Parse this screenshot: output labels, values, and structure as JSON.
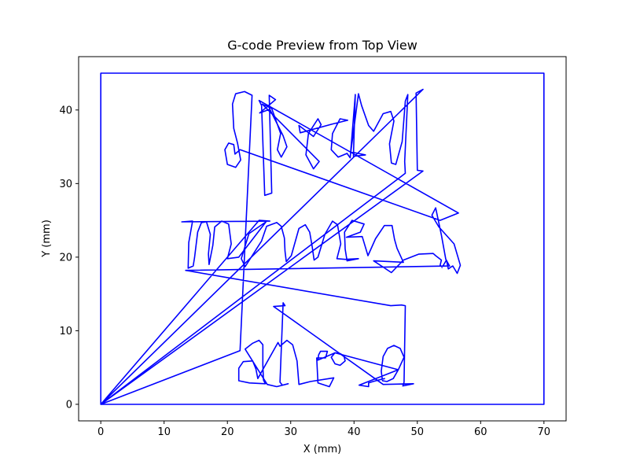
{
  "chart_data": {
    "type": "line",
    "title": "G-code Preview from Top View",
    "xlabel": "X (mm)",
    "ylabel": "Y (mm)",
    "xlim": [
      -3.5,
      73.5
    ],
    "ylim": [
      -2.25,
      47.25
    ],
    "xticks": [
      0,
      10,
      20,
      30,
      40,
      50,
      60,
      70
    ],
    "yticks": [
      0,
      10,
      20,
      30,
      40
    ],
    "grid": false,
    "series_color": "#0000ff",
    "series": [
      {
        "values": [
          [
            0,
            0
          ],
          [
            0,
            45
          ],
          [
            70,
            45
          ],
          [
            70,
            0
          ],
          [
            0,
            0
          ],
          [
            50.9,
            42.8
          ],
          [
            49.8,
            42.3
          ],
          [
            50.0,
            31.8
          ],
          [
            50.9,
            31.7
          ],
          [
            0,
            0
          ],
          [
            22.0,
            7.3
          ],
          [
            23.9,
            42.0
          ],
          [
            22.7,
            42.5
          ],
          [
            21.3,
            42.2
          ],
          [
            20.8,
            40.8
          ],
          [
            21.0,
            37.5
          ],
          [
            21.6,
            35.5
          ],
          [
            22.1,
            33.2
          ],
          [
            21.3,
            32.2
          ],
          [
            20.0,
            32.6
          ],
          [
            19.6,
            34.6
          ],
          [
            20.2,
            35.5
          ],
          [
            21.0,
            35.3
          ],
          [
            21.2,
            34.0
          ],
          [
            22.0,
            34.6
          ],
          [
            53.6,
            25.0
          ],
          [
            56.5,
            26.0
          ],
          [
            25.0,
            41.3
          ],
          [
            25.4,
            40.6
          ],
          [
            25.9,
            28.4
          ],
          [
            27.0,
            28.7
          ],
          [
            26.6,
            42.0
          ],
          [
            27.6,
            41.4
          ],
          [
            25.1,
            39.6
          ],
          [
            26.7,
            40.1
          ],
          [
            28.8,
            36.5
          ],
          [
            29.4,
            35.0
          ],
          [
            28.5,
            33.6
          ],
          [
            27.9,
            34.6
          ],
          [
            28.4,
            36.8
          ],
          [
            27.0,
            40.2
          ],
          [
            25.5,
            40.8
          ],
          [
            34.5,
            33.0
          ],
          [
            33.6,
            32.0
          ],
          [
            32.4,
            33.9
          ],
          [
            32.8,
            36.8
          ],
          [
            34.3,
            38.8
          ],
          [
            34.8,
            38.0
          ],
          [
            33.6,
            36.4
          ],
          [
            31.3,
            37.9
          ],
          [
            31.5,
            36.9
          ],
          [
            36.6,
            38.1
          ],
          [
            39.0,
            38.6
          ],
          [
            37.8,
            38.8
          ],
          [
            36.6,
            36.8
          ],
          [
            36.4,
            34.6
          ],
          [
            37.5,
            33.6
          ],
          [
            38.9,
            34.1
          ],
          [
            39.4,
            33.5
          ],
          [
            40.2,
            42.1
          ],
          [
            39.9,
            33.7
          ],
          [
            41.8,
            33.9
          ],
          [
            39.5,
            34.3
          ],
          [
            40.7,
            42.2
          ],
          [
            41.2,
            40.6
          ],
          [
            42.3,
            37.9
          ],
          [
            43.1,
            37.1
          ],
          [
            44.6,
            39.5
          ],
          [
            45.8,
            39.8
          ],
          [
            46.3,
            38.5
          ],
          [
            45.6,
            35.4
          ],
          [
            45.9,
            32.8
          ],
          [
            46.6,
            32.6
          ],
          [
            47.6,
            35.7
          ],
          [
            48.1,
            41.2
          ],
          [
            48.5,
            42.1
          ],
          [
            48.0,
            33.0
          ],
          [
            48.1,
            31.4
          ],
          [
            0,
            0
          ],
          [
            25.0,
            25.0
          ],
          [
            26.7,
            24.9
          ],
          [
            12.8,
            24.8
          ],
          [
            14.5,
            24.9
          ],
          [
            13.9,
            22.0
          ],
          [
            13.8,
            18.5
          ],
          [
            14.6,
            18.8
          ],
          [
            14.8,
            19.9
          ],
          [
            15.3,
            23.4
          ],
          [
            15.9,
            24.7
          ],
          [
            16.7,
            24.8
          ],
          [
            17.3,
            23.1
          ],
          [
            17.0,
            20.4
          ],
          [
            17.1,
            19.0
          ],
          [
            17.7,
            21.6
          ],
          [
            18.0,
            24.1
          ],
          [
            19.1,
            24.9
          ],
          [
            20.2,
            24.5
          ],
          [
            20.6,
            21.8
          ],
          [
            20.0,
            19.8
          ],
          [
            21.8,
            20.0
          ],
          [
            26.1,
            24.8
          ],
          [
            23.4,
            23.2
          ],
          [
            22.2,
            19.8
          ],
          [
            22.8,
            18.7
          ],
          [
            25.4,
            22.2
          ],
          [
            26.2,
            24.2
          ],
          [
            27.8,
            24.7
          ],
          [
            28.5,
            24.2
          ],
          [
            29.0,
            22.6
          ],
          [
            29.1,
            20.8
          ],
          [
            29.3,
            19.4
          ],
          [
            30.1,
            20.2
          ],
          [
            31.3,
            23.9
          ],
          [
            32.3,
            24.4
          ],
          [
            33.0,
            23.4
          ],
          [
            33.4,
            21.4
          ],
          [
            33.7,
            19.6
          ],
          [
            34.3,
            20.0
          ],
          [
            35.4,
            23.1
          ],
          [
            36.6,
            24.9
          ],
          [
            37.4,
            24.4
          ],
          [
            37.9,
            21.8
          ],
          [
            37.3,
            19.8
          ],
          [
            38.6,
            19.7
          ],
          [
            40.7,
            19.8
          ],
          [
            38.9,
            19.5
          ],
          [
            38.6,
            21.1
          ],
          [
            38.5,
            23.4
          ],
          [
            39.7,
            25.0
          ],
          [
            41.6,
            24.5
          ],
          [
            41.0,
            23.4
          ],
          [
            38.8,
            22.7
          ],
          [
            41.3,
            22.8
          ],
          [
            42.2,
            20.2
          ],
          [
            43.4,
            22.5
          ],
          [
            44.8,
            24.3
          ],
          [
            46.0,
            24.3
          ],
          [
            46.4,
            22.4
          ],
          [
            46.8,
            21.2
          ],
          [
            47.8,
            19.3
          ],
          [
            43.1,
            19.5
          ],
          [
            45.9,
            17.9
          ],
          [
            47.8,
            19.6
          ],
          [
            50.2,
            20.4
          ],
          [
            52.5,
            20.5
          ],
          [
            52.9,
            20.2
          ],
          [
            53.8,
            19.6
          ],
          [
            53.6,
            18.9
          ],
          [
            53.9,
            18.6
          ],
          [
            54.6,
            19.6
          ],
          [
            54.9,
            18.4
          ],
          [
            55.4,
            18.7
          ],
          [
            55.6,
            18.8
          ],
          [
            56.3,
            17.8
          ],
          [
            56.8,
            18.9
          ],
          [
            55.8,
            21.8
          ],
          [
            53.4,
            24.1
          ],
          [
            52.3,
            25.7
          ],
          [
            52.9,
            26.7
          ],
          [
            53.8,
            23.0
          ],
          [
            54.5,
            19.7
          ],
          [
            55.1,
            18.8
          ],
          [
            13.4,
            18.2
          ],
          [
            45.8,
            13.4
          ],
          [
            47.5,
            13.5
          ],
          [
            48.1,
            13.4
          ],
          [
            47.9,
            3.0
          ],
          [
            47.7,
            2.5
          ],
          [
            49.4,
            2.8
          ],
          [
            44.6,
            2.7
          ],
          [
            27.3,
            13.3
          ],
          [
            29.1,
            13.4
          ],
          [
            28.8,
            13.8
          ],
          [
            28.3,
            3.0
          ],
          [
            28.7,
            2.6
          ],
          [
            29.6,
            2.8
          ],
          [
            27.8,
            2.4
          ],
          [
            26.3,
            2.7
          ],
          [
            22.8,
            7.5
          ],
          [
            24.0,
            8.3
          ],
          [
            25.0,
            8.7
          ],
          [
            25.6,
            8.1
          ],
          [
            25.6,
            5.3
          ],
          [
            25.7,
            3.3
          ],
          [
            26.0,
            2.8
          ],
          [
            23.5,
            2.9
          ],
          [
            21.8,
            3.2
          ],
          [
            21.8,
            4.9
          ],
          [
            22.5,
            5.8
          ],
          [
            24.0,
            5.9
          ],
          [
            24.5,
            4.8
          ],
          [
            24.8,
            3.5
          ],
          [
            28.0,
            8.4
          ],
          [
            28.3,
            7.9
          ],
          [
            29.4,
            8.7
          ],
          [
            30.3,
            8.1
          ],
          [
            31.0,
            5.9
          ],
          [
            31.3,
            2.7
          ],
          [
            33.1,
            3.1
          ],
          [
            36.8,
            3.6
          ],
          [
            36.1,
            2.4
          ],
          [
            34.3,
            2.9
          ],
          [
            34.1,
            6.3
          ],
          [
            35.5,
            6.3
          ],
          [
            35.8,
            7.2
          ],
          [
            34.7,
            7.2
          ],
          [
            34.4,
            6.7
          ],
          [
            34.3,
            6.0
          ],
          [
            37.0,
            7.0
          ],
          [
            36.4,
            6.4
          ],
          [
            37.0,
            5.5
          ],
          [
            37.8,
            5.3
          ],
          [
            38.6,
            5.9
          ],
          [
            38.4,
            6.6
          ],
          [
            37.8,
            6.9
          ],
          [
            37.0,
            7.0
          ],
          [
            47.0,
            4.7
          ],
          [
            46.2,
            3.5
          ],
          [
            45.2,
            3.1
          ],
          [
            44.5,
            3.2
          ],
          [
            44.3,
            4.5
          ],
          [
            44.6,
            6.5
          ],
          [
            45.3,
            7.6
          ],
          [
            46.3,
            8.0
          ],
          [
            47.3,
            7.6
          ],
          [
            47.9,
            6.4
          ],
          [
            47.0,
            4.7
          ],
          [
            40.8,
            2.6
          ],
          [
            42.3,
            2.4
          ],
          [
            42.3,
            2.9
          ],
          [
            43.0,
            3.1
          ],
          [
            44.3,
            3.4
          ],
          [
            44.9,
            3.5
          ]
        ]
      }
    ]
  }
}
